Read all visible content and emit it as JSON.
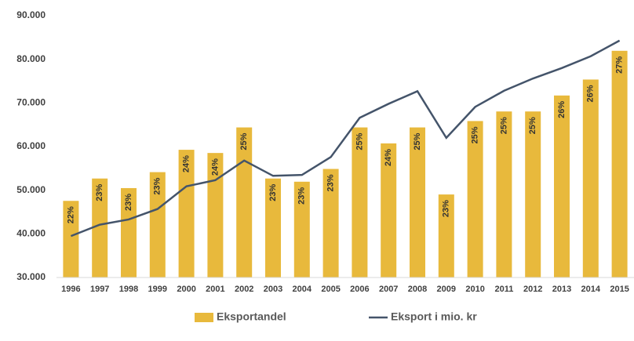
{
  "chart_data": {
    "type": "bar-line",
    "categories": [
      "1996",
      "1997",
      "1998",
      "1999",
      "2000",
      "2001",
      "2002",
      "2003",
      "2004",
      "2005",
      "2006",
      "2007",
      "2008",
      "2009",
      "2010",
      "2011",
      "2012",
      "2013",
      "2014",
      "2015"
    ],
    "series": [
      {
        "name": "Eksportandel",
        "type": "bar",
        "axis": "y2",
        "color": "#e8b93c",
        "values": [
          22.4,
          23.1,
          22.8,
          23.3,
          24.0,
          23.9,
          24.7,
          23.1,
          23.0,
          23.4,
          24.7,
          24.2,
          24.7,
          22.6,
          24.9,
          25.2,
          25.2,
          25.7,
          26.2,
          27.1
        ],
        "value_labels": [
          "22%",
          "23%",
          "23%",
          "23%",
          "24%",
          "24%",
          "25%",
          "23%",
          "23%",
          "23%",
          "25%",
          "24%",
          "25%",
          "23%",
          "25%",
          "25%",
          "25%",
          "26%",
          "26%",
          "27%"
        ]
      },
      {
        "name": "Eksport i mio. kr",
        "type": "line",
        "color": "#44546a",
        "values": [
          39500,
          42100,
          43300,
          45700,
          50900,
          52300,
          56800,
          53300,
          53500,
          57600,
          66600,
          69800,
          72700,
          62000,
          69100,
          72800,
          75600,
          78000,
          80700,
          84300
        ]
      }
    ],
    "ylim": [
      30000,
      90000
    ],
    "yticks": [
      {
        "value": 30000,
        "label": "30.000"
      },
      {
        "value": 40000,
        "label": "40.000"
      },
      {
        "value": 50000,
        "label": "50.000"
      },
      {
        "value": 60000,
        "label": "60.000"
      },
      {
        "value": 70000,
        "label": "70.000"
      },
      {
        "value": 80000,
        "label": "80.000"
      },
      {
        "value": 90000,
        "label": "90.000"
      }
    ],
    "y2lim": [
      20,
      28.2
    ],
    "legend": "bottom"
  }
}
